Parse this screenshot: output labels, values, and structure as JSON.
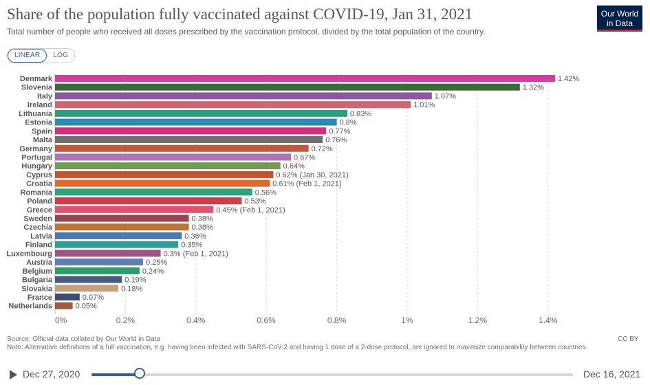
{
  "header": {
    "title": "Share of the population fully vaccinated against COVID-19, Jan 31, 2021",
    "subtitle": "Total number of people who received all doses prescribed by the vaccination protocol, divided by the total population of the country.",
    "logo_line1": "Our World",
    "logo_line2": "in Data"
  },
  "scale_toggle": {
    "linear": "LINEAR",
    "log": "LOG",
    "selected": "LINEAR"
  },
  "chart_data": {
    "type": "bar",
    "orientation": "horizontal",
    "categories": [
      "Denmark",
      "Slovenia",
      "Italy",
      "Ireland",
      "Lithuania",
      "Estonia",
      "Spain",
      "Malta",
      "Germany",
      "Portugal",
      "Hungary",
      "Cyprus",
      "Croatia",
      "Romania",
      "Poland",
      "Greece",
      "Sweden",
      "Czechia",
      "Latvia",
      "Finland",
      "Luxembourg",
      "Austria",
      "Belgium",
      "Bulgaria",
      "Slovakia",
      "France",
      "Netherlands"
    ],
    "values": [
      1.42,
      1.32,
      1.07,
      1.01,
      0.83,
      0.8,
      0.77,
      0.76,
      0.72,
      0.67,
      0.64,
      0.62,
      0.61,
      0.56,
      0.53,
      0.45,
      0.38,
      0.38,
      0.36,
      0.35,
      0.3,
      0.25,
      0.24,
      0.19,
      0.18,
      0.07,
      0.05
    ],
    "labels": [
      "1.42%",
      "1.32%",
      "1.07%",
      "1.01%",
      "0.83%",
      "0.8%",
      "0.77%",
      "0.76%",
      "0.72%",
      "0.67%",
      "0.64%",
      "0.62% (Jan 30, 2021)",
      "0.61% (Feb 1, 2021)",
      "0.56%",
      "0.53%",
      "0.45% (Feb 1, 2021)",
      "0.38%",
      "0.38%",
      "0.36%",
      "0.35%",
      "0.3% (Feb 1, 2021)",
      "0.25%",
      "0.24%",
      "0.19%",
      "0.18%",
      "0.07%",
      "0.05%"
    ],
    "colors": [
      "#d73c9e",
      "#3d6a3a",
      "#8e57a6",
      "#d3646f",
      "#2e9c7e",
      "#2a8ab0",
      "#d42e7c",
      "#6f6f6f",
      "#c4563a",
      "#b074b5",
      "#739a56",
      "#c7522e",
      "#dd6a2c",
      "#2ba37b",
      "#d23c4a",
      "#e0516f",
      "#9b4550",
      "#b8753a",
      "#4a7bb0",
      "#2e9e97",
      "#9d5383",
      "#5e7fb1",
      "#2d9d68",
      "#4a5980",
      "#c4a17c",
      "#3b4d74",
      "#9e5c3e"
    ],
    "xticks": [
      0,
      0.2,
      0.4,
      0.6,
      0.8,
      1,
      1.2,
      1.4
    ],
    "xtick_labels": [
      "0%",
      "0.2%",
      "0.4%",
      "0.6%",
      "0.8%",
      "1%",
      "1.2%",
      "1.4%"
    ],
    "xlim": [
      0,
      1.42
    ],
    "grid": true
  },
  "footer": {
    "source": "Source: Official data collated by Our World in Data",
    "note": "Note: Alternative definitions of a full vaccination, e.g. having been infected with SARS-CoV-2 and having 1 dose of a 2-dose protocol, are ignored to maximize comparability between countries.",
    "license": "CC BY"
  },
  "timeline": {
    "start_label": "Dec 27, 2020",
    "end_label": "Dec 16, 2021",
    "position_fraction": 0.1
  }
}
